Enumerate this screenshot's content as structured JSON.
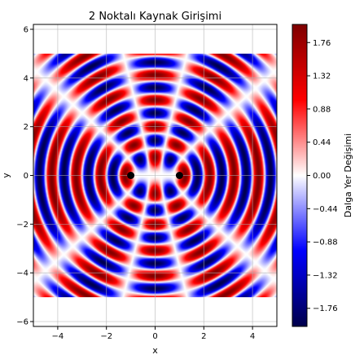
{
  "chart_data": {
    "type": "heatmap",
    "title": "2 Noktalı Kaynak Girişimi",
    "xlabel": "x",
    "ylabel": "y",
    "colorbar_label": "Dalga Yer Değişimi",
    "colormap": "seismic",
    "xlim": [
      -5,
      5
    ],
    "ylim": [
      -6.2,
      6.2
    ],
    "x_ticks": [
      -4,
      -2,
      0,
      2,
      4
    ],
    "y_ticks": [
      -6,
      -4,
      -2,
      0,
      2,
      4,
      6
    ],
    "x_tick_labels": [
      "−4",
      "−2",
      "0",
      "2",
      "4"
    ],
    "y_tick_labels": [
      "−6",
      "−4",
      "−2",
      "0",
      "2",
      "4",
      "6"
    ],
    "data_extent": {
      "x": [
        -5,
        5
      ],
      "y": [
        -5,
        5
      ]
    },
    "grid": true,
    "sources": [
      {
        "x": -1,
        "y": 0
      },
      {
        "x": 1,
        "y": 0
      }
    ],
    "wave": {
      "wavelength": 1.0,
      "amplitude_per_source": 1.0
    },
    "value_range": [
      -2,
      2
    ],
    "colorbar_ticks": [
      1.76,
      1.32,
      0.88,
      0.44,
      0.0,
      -0.44,
      -0.88,
      -1.32,
      -1.76
    ],
    "colorbar_tick_labels": [
      "1.76",
      "1.32",
      "0.88",
      "0.44",
      "0.00",
      "−0.44",
      "−0.88",
      "−1.32",
      "−1.76"
    ],
    "colors": {
      "low": "#00004c",
      "mid": "#ffffff",
      "high": "#800000"
    }
  }
}
